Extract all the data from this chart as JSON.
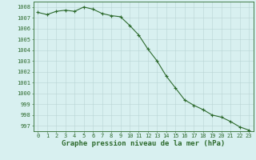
{
  "x": [
    0,
    1,
    2,
    3,
    4,
    5,
    6,
    7,
    8,
    9,
    10,
    11,
    12,
    13,
    14,
    15,
    16,
    17,
    18,
    19,
    20,
    21,
    22,
    23
  ],
  "y": [
    1007.5,
    1007.3,
    1007.6,
    1007.7,
    1007.6,
    1008.0,
    1007.8,
    1007.4,
    1007.2,
    1007.1,
    1006.3,
    1005.4,
    1004.1,
    1003.0,
    1001.6,
    1000.5,
    999.4,
    998.9,
    998.5,
    998.0,
    997.8,
    997.4,
    996.9,
    996.6
  ],
  "line_color": "#2d6a2d",
  "marker": "+",
  "marker_size": 3.5,
  "marker_lw": 0.8,
  "line_width": 0.8,
  "bg_color": "#d8f0f0",
  "grid_color": "#b8d4d4",
  "axis_color": "#2d6a2d",
  "tick_color": "#2d6a2d",
  "ylabel_values": [
    997,
    998,
    999,
    1000,
    1001,
    1002,
    1003,
    1004,
    1005,
    1006,
    1007,
    1008
  ],
  "xlabel": "Graphe pression niveau de la mer (hPa)",
  "ylim": [
    996.5,
    1008.5
  ],
  "xlim": [
    -0.5,
    23.5
  ],
  "tick_fontsize": 5.0,
  "xlabel_fontsize": 6.5
}
